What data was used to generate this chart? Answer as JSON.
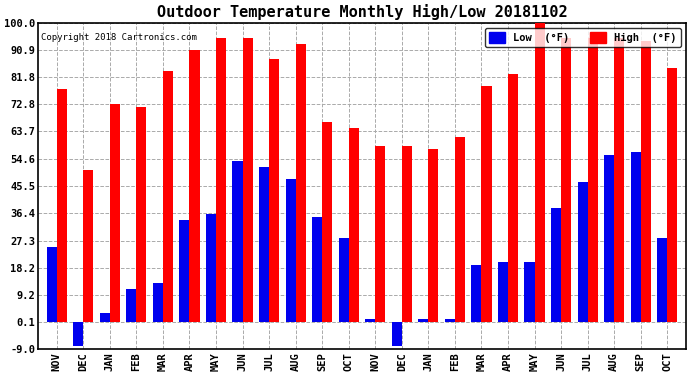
{
  "title": "Outdoor Temperature Monthly High/Low 20181102",
  "copyright": "Copyright 2018 Cartronics.com",
  "months": [
    "NOV",
    "DEC",
    "JAN",
    "FEB",
    "MAR",
    "APR",
    "MAY",
    "JUN",
    "JUL",
    "AUG",
    "SEP",
    "OCT",
    "NOV",
    "DEC",
    "JAN",
    "FEB",
    "MAR",
    "APR",
    "MAY",
    "JUN",
    "JUL",
    "AUG",
    "SEP",
    "OCT"
  ],
  "high_vals": [
    78,
    51,
    73,
    72,
    84,
    91,
    95,
    95,
    88,
    93,
    67,
    65,
    59,
    59,
    58,
    62,
    79,
    83,
    101,
    95,
    95,
    95,
    94,
    85
  ],
  "low_vals": [
    25,
    -8,
    3,
    11,
    13,
    34,
    36,
    54,
    52,
    48,
    35,
    28,
    1,
    -8,
    1,
    1,
    19,
    20,
    20,
    38,
    47,
    56,
    57,
    28
  ],
  "bar_width": 0.38,
  "high_color": "#FF0000",
  "low_color": "#0000EE",
  "bg_color": "#FFFFFF",
  "plot_bg_color": "#FFFFFF",
  "grid_color": "#AAAAAA",
  "ylim": [
    -9.0,
    100.0
  ],
  "yticks": [
    -9.0,
    0.1,
    9.2,
    18.2,
    27.3,
    36.4,
    45.5,
    54.6,
    63.7,
    72.8,
    81.8,
    90.9,
    100.0
  ],
  "title_fontsize": 11,
  "tick_fontsize": 7.5,
  "legend_high_label": "High  (°F)",
  "legend_low_label": "Low  (°F)"
}
